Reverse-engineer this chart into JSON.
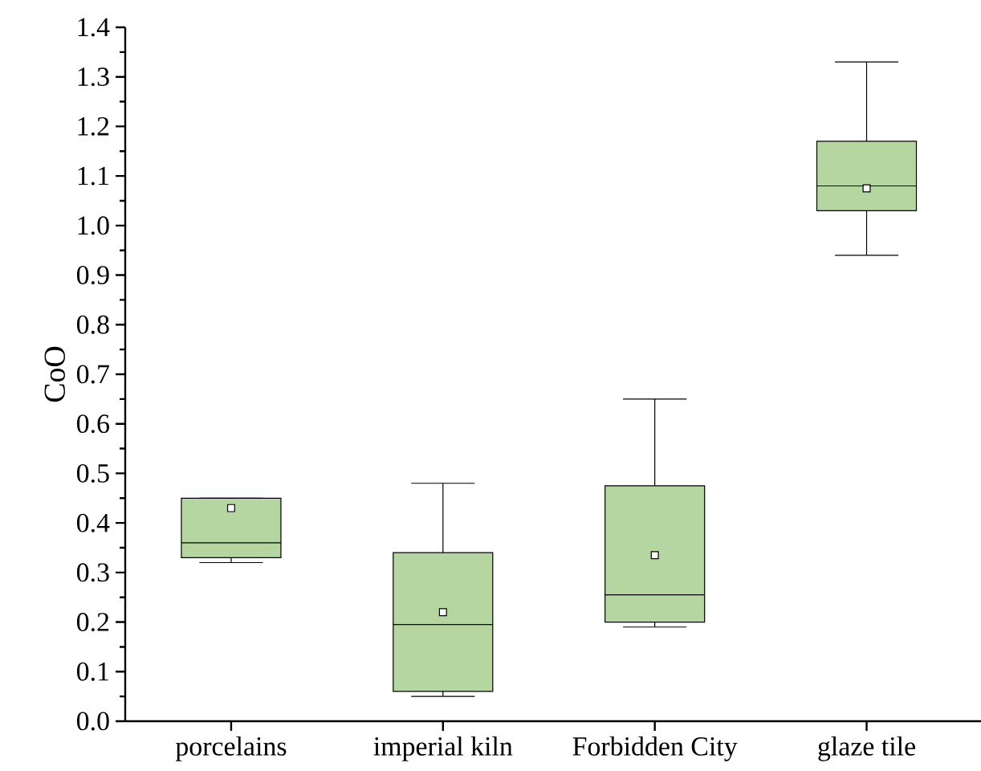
{
  "chart_data": {
    "type": "box",
    "ylabel": "CoO",
    "categories": [
      "porcelains",
      "imperial kiln",
      "Forbidden City",
      "glaze tile"
    ],
    "boxes": [
      {
        "low": 0.32,
        "q1": 0.33,
        "median": 0.36,
        "q3": 0.45,
        "high": 0.45,
        "mean": 0.43
      },
      {
        "low": 0.05,
        "q1": 0.06,
        "median": 0.195,
        "q3": 0.34,
        "high": 0.48,
        "mean": 0.22
      },
      {
        "low": 0.19,
        "q1": 0.2,
        "median": 0.255,
        "q3": 0.475,
        "high": 0.65,
        "mean": 0.335
      },
      {
        "low": 0.94,
        "q1": 1.03,
        "median": 1.08,
        "q3": 1.17,
        "high": 1.33,
        "mean": 1.075
      }
    ],
    "color": "#b5d6a0",
    "ylim": [
      0,
      1.4
    ],
    "yticks": [
      {
        "value": 0,
        "label": "0.0"
      },
      0.1,
      0.2,
      0.3,
      0.4,
      0.5,
      0.6,
      0.7,
      0.8,
      0.9,
      {
        "value": 1,
        "label": "1.0"
      },
      1.1,
      1.2,
      1.3,
      1.4
    ],
    "grid": false,
    "marker": "square"
  }
}
